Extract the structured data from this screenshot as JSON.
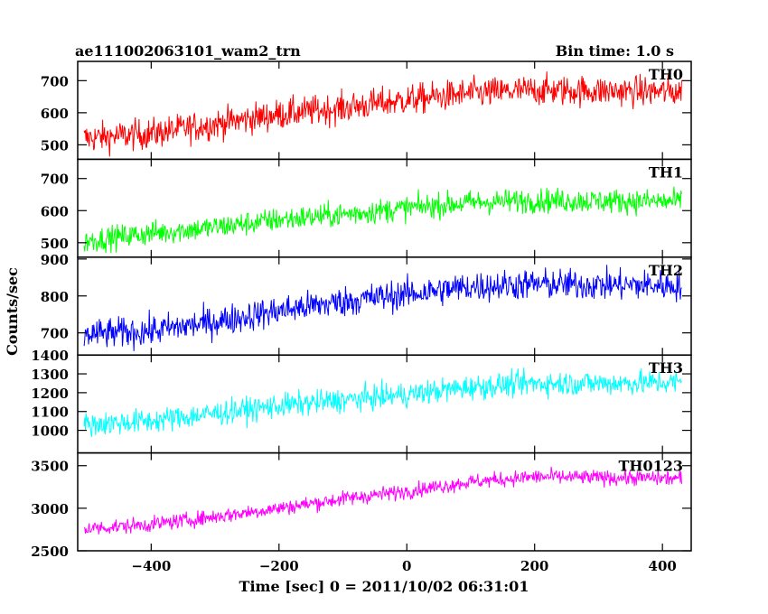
{
  "chart_data": {
    "type": "line",
    "title": "ae111002063101_wam2_trn",
    "subtitle": "Bin time: 1.0 s",
    "xlabel": "Time [sec] 0 = 2011/10/02 06:31:01",
    "ylabel": "Counts/sec",
    "xlim": [
      -515,
      445
    ],
    "x_ticks": [
      -400,
      -200,
      0,
      200,
      400
    ],
    "x_tick_labels": [
      "−400",
      "−200",
      "0",
      "200",
      "400"
    ],
    "data_x_range": [
      -505,
      430
    ],
    "panels": [
      {
        "name": "TH0",
        "color": "#ff0000",
        "ylim": [
          455,
          760
        ],
        "y_ticks": [
          500,
          600,
          700
        ],
        "y_tick_labels": [
          "500",
          "600",
          "700"
        ],
        "trend": {
          "x": [
            -505,
            -400,
            -300,
            -200,
            -100,
            0,
            100,
            200,
            300,
            430
          ],
          "y": [
            520,
            535,
            565,
            595,
            615,
            640,
            660,
            670,
            668,
            665
          ]
        },
        "noise": 40
      },
      {
        "name": "TH1",
        "color": "#00ff00",
        "ylim": [
          455,
          760
        ],
        "y_ticks": [
          500,
          600,
          700
        ],
        "y_tick_labels": [
          "500",
          "600",
          "700"
        ],
        "trend": {
          "x": [
            -505,
            -400,
            -300,
            -200,
            -100,
            0,
            100,
            200,
            300,
            430
          ],
          "y": [
            505,
            530,
            548,
            572,
            588,
            608,
            625,
            632,
            630,
            628
          ]
        },
        "noise": 32
      },
      {
        "name": "TH2",
        "color": "#0000ff",
        "ylim": [
          640,
          905
        ],
        "y_ticks": [
          700,
          800,
          900
        ],
        "y_tick_labels": [
          "700",
          "800",
          "900"
        ],
        "trend": {
          "x": [
            -505,
            -400,
            -300,
            -200,
            -100,
            0,
            100,
            200,
            300,
            430
          ],
          "y": [
            695,
            705,
            730,
            760,
            785,
            805,
            825,
            832,
            830,
            828
          ]
        },
        "noise": 35
      },
      {
        "name": "TH3",
        "color": "#00ffff",
        "ylim": [
          880,
          1400
        ],
        "y_ticks": [
          1000,
          1100,
          1200,
          1300,
          1400
        ],
        "y_tick_labels": [
          "1000",
          "1100",
          "1200",
          "1300",
          "1400"
        ],
        "trend": {
          "x": [
            -505,
            -400,
            -300,
            -200,
            -100,
            0,
            100,
            200,
            300,
            430
          ],
          "y": [
            1030,
            1050,
            1090,
            1130,
            1160,
            1190,
            1230,
            1250,
            1250,
            1255
          ]
        },
        "noise": 55
      },
      {
        "name": "TH0123",
        "color": "#ff00ff",
        "ylim": [
          2500,
          3650
        ],
        "y_ticks": [
          2500,
          3000,
          3500
        ],
        "y_tick_labels": [
          "2500",
          "3000",
          "3500"
        ],
        "trend": {
          "x": [
            -505,
            -400,
            -300,
            -200,
            -100,
            0,
            100,
            200,
            300,
            430
          ],
          "y": [
            2760,
            2810,
            2900,
            3000,
            3110,
            3200,
            3310,
            3370,
            3360,
            3350
          ]
        },
        "noise": 75
      }
    ]
  }
}
